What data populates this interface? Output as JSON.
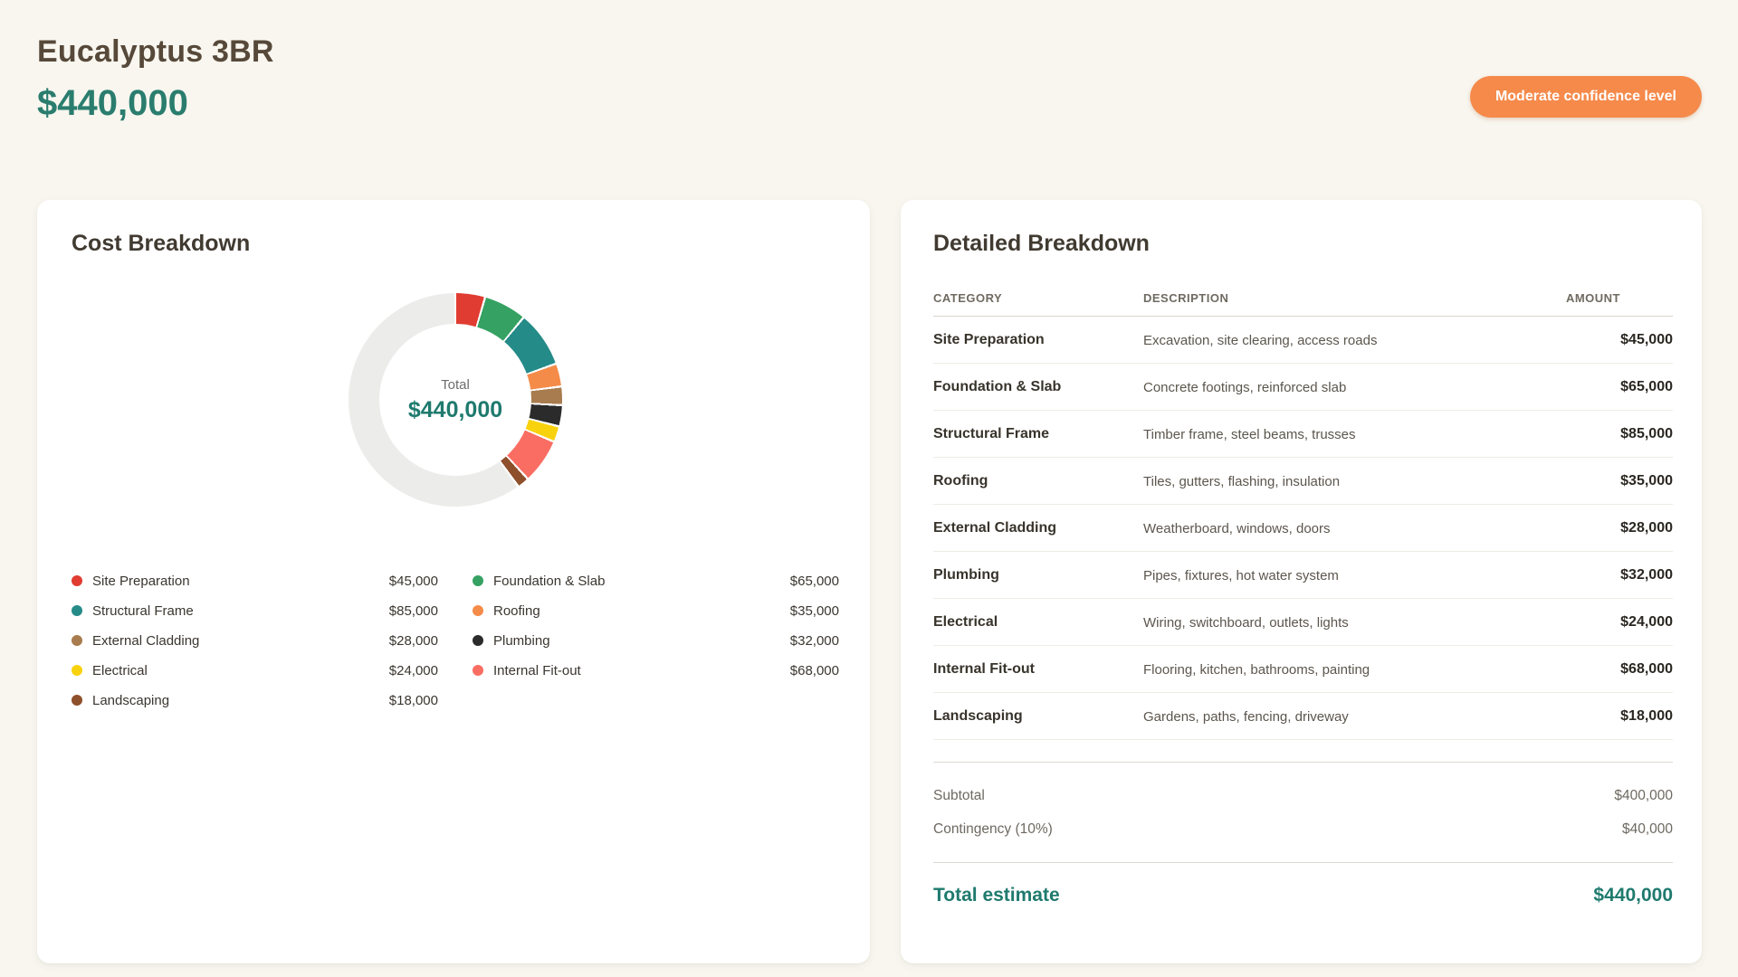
{
  "header": {
    "title": "Eucalyptus 3BR",
    "total": "$440,000",
    "badge": "Moderate confidence level"
  },
  "colors": {
    "page_background": "#f8f6ef",
    "card_background": "#ffffff",
    "accent_teal": "#1f7a6e",
    "badge_orange": "#f58a4b",
    "heading_brown": "#57493a",
    "donut_remainder_gray": "#ececea"
  },
  "cost_breakdown": {
    "title": "Cost Breakdown"
  },
  "chart_data": {
    "type": "pie",
    "subtype": "donut",
    "title": "Cost Breakdown",
    "center_label": "Total",
    "center_value": "$440,000",
    "scale_total": 1000000,
    "remainder_color": "#ececea",
    "legend_position": "below, two columns",
    "segments": [
      {
        "label": "Site Preparation",
        "value": 45000,
        "display": "$45,000",
        "color": "#e03c31"
      },
      {
        "label": "Foundation & Slab",
        "value": 65000,
        "display": "$65,000",
        "color": "#35a162"
      },
      {
        "label": "Structural Frame",
        "value": 85000,
        "display": "$85,000",
        "color": "#258b88"
      },
      {
        "label": "Roofing",
        "value": 35000,
        "display": "$35,000",
        "color": "#f58b49"
      },
      {
        "label": "External Cladding",
        "value": 28000,
        "display": "$28,000",
        "color": "#a87c4f"
      },
      {
        "label": "Plumbing",
        "value": 32000,
        "display": "$32,000",
        "color": "#2b2b2b"
      },
      {
        "label": "Electrical",
        "value": 24000,
        "display": "$24,000",
        "color": "#f9d20e"
      },
      {
        "label": "Internal Fit-out",
        "value": 68000,
        "display": "$68,000",
        "color": "#fa6d62"
      },
      {
        "label": "Landscaping",
        "value": 18000,
        "display": "$18,000",
        "color": "#8e4f2b"
      }
    ]
  },
  "detailed_breakdown": {
    "title": "Detailed Breakdown",
    "columns": [
      "CATEGORY",
      "DESCRIPTION",
      "AMOUNT"
    ],
    "rows": [
      {
        "category": "Site Preparation",
        "description": "Excavation, site clearing, access roads",
        "amount": "$45,000"
      },
      {
        "category": "Foundation & Slab",
        "description": "Concrete footings, reinforced slab",
        "amount": "$65,000"
      },
      {
        "category": "Structural Frame",
        "description": "Timber frame, steel beams, trusses",
        "amount": "$85,000"
      },
      {
        "category": "Roofing",
        "description": "Tiles, gutters, flashing, insulation",
        "amount": "$35,000"
      },
      {
        "category": "External Cladding",
        "description": "Weatherboard, windows, doors",
        "amount": "$28,000"
      },
      {
        "category": "Plumbing",
        "description": "Pipes, fixtures, hot water system",
        "amount": "$32,000"
      },
      {
        "category": "Electrical",
        "description": "Wiring, switchboard, outlets, lights",
        "amount": "$24,000"
      },
      {
        "category": "Internal Fit-out",
        "description": "Flooring, kitchen, bathrooms, painting",
        "amount": "$68,000"
      },
      {
        "category": "Landscaping",
        "description": "Gardens, paths, fencing, driveway",
        "amount": "$18,000"
      }
    ],
    "subtotal_label": "Subtotal",
    "subtotal": "$400,000",
    "contingency_label": "Contingency (10%)",
    "contingency": "$40,000",
    "total_label": "Total estimate",
    "total": "$440,000"
  }
}
